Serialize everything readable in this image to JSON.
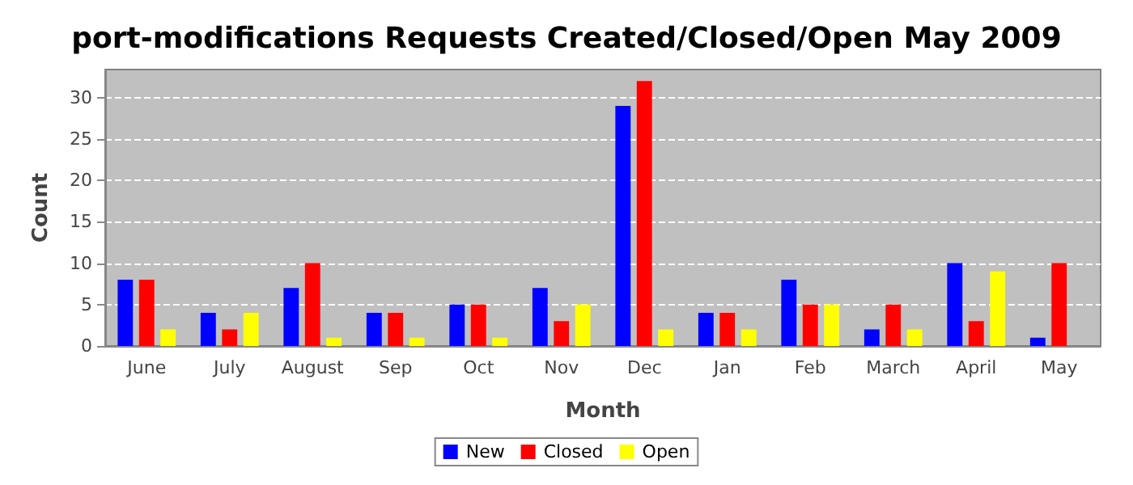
{
  "chart_data": {
    "type": "bar",
    "title": "port-modifications Requests Created/Closed/Open May 2009",
    "xlabel": "Month",
    "ylabel": "Count",
    "categories": [
      "June",
      "July",
      "August",
      "Sep",
      "Oct",
      "Nov",
      "Dec",
      "Jan",
      "Feb",
      "March",
      "April",
      "May"
    ],
    "series": [
      {
        "name": "New",
        "color": "#0000ff",
        "values": [
          8,
          4,
          7,
          4,
          5,
          7,
          29,
          4,
          8,
          2,
          10,
          1
        ]
      },
      {
        "name": "Closed",
        "color": "#ff0000",
        "values": [
          8,
          2,
          10,
          4,
          5,
          3,
          32,
          4,
          5,
          5,
          3,
          10
        ]
      },
      {
        "name": "Open",
        "color": "#ffff00",
        "values": [
          2,
          4,
          1,
          1,
          1,
          5,
          2,
          2,
          5,
          2,
          9,
          0
        ]
      }
    ],
    "ylim": [
      0,
      33.4
    ],
    "yticks": [
      0,
      5,
      10,
      15,
      20,
      25,
      30
    ],
    "grid": "y",
    "legend": "bottom"
  }
}
